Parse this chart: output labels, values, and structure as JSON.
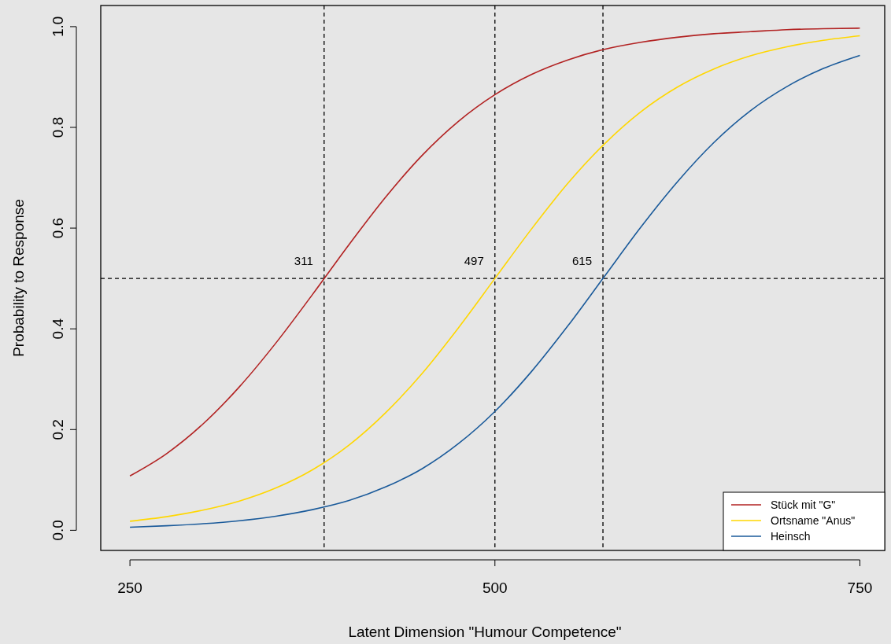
{
  "chart_data": {
    "type": "line",
    "xlabel": "Latent Dimension \"Humour Competence\"",
    "ylabel": "Probability to Response",
    "x": [
      250,
      275,
      300,
      325,
      350,
      375,
      400,
      425,
      450,
      475,
      500,
      525,
      550,
      575,
      600,
      625,
      650,
      675,
      700,
      725,
      750
    ],
    "xlim": [
      230,
      767
    ],
    "xticks": [
      250,
      500,
      750
    ],
    "ylim": [
      -0.04,
      1.042
    ],
    "yticks": [
      {
        "value": 0,
        "label": "0.0"
      },
      {
        "value": 0.2,
        "label": "0.2"
      },
      {
        "value": 0.4,
        "label": "0.4"
      },
      {
        "value": 0.6,
        "label": "0.6"
      },
      {
        "value": 0.8,
        "label": "0.8"
      },
      {
        "value": 1,
        "label": "1.0"
      }
    ],
    "annotations": [
      "311",
      "497",
      "615"
    ],
    "series": [
      {
        "name": "Stück mit \"G\"",
        "color": "#b22222",
        "values": [
          0.108,
          0.152,
          0.211,
          0.285,
          0.372,
          0.468,
          0.567,
          0.661,
          0.744,
          0.812,
          0.865,
          0.905,
          0.934,
          0.955,
          0.969,
          0.979,
          0.986,
          0.99,
          0.994,
          0.996,
          0.997
        ]
      },
      {
        "name": "Ortsname \"Anus\"",
        "color": "#ffd700",
        "values": [
          0.018,
          0.027,
          0.04,
          0.058,
          0.084,
          0.12,
          0.169,
          0.233,
          0.311,
          0.402,
          0.5,
          0.598,
          0.689,
          0.767,
          0.831,
          0.88,
          0.916,
          0.942,
          0.96,
          0.973,
          0.982
        ]
      },
      {
        "name": "Heinsch",
        "color": "#1a5a9a",
        "values": [
          0.006,
          0.009,
          0.013,
          0.019,
          0.028,
          0.041,
          0.059,
          0.086,
          0.122,
          0.172,
          0.236,
          0.315,
          0.406,
          0.504,
          0.602,
          0.692,
          0.77,
          0.833,
          0.881,
          0.917,
          0.943
        ]
      }
    ],
    "ref_lines": [
      {
        "axis": "x",
        "value": 383,
        "line_style": "dashed",
        "color": "#000000"
      },
      {
        "axis": "x",
        "value": 500,
        "line_style": "dashed",
        "color": "#000000"
      },
      {
        "axis": "x",
        "value": 574,
        "line_style": "dashed",
        "color": "#000000"
      },
      {
        "axis": "y",
        "value": 0.5,
        "line_style": "dashed",
        "color": "#000000"
      }
    ],
    "legend": "bottom right",
    "grid": false,
    "marker": "none",
    "line_style": "solid"
  }
}
